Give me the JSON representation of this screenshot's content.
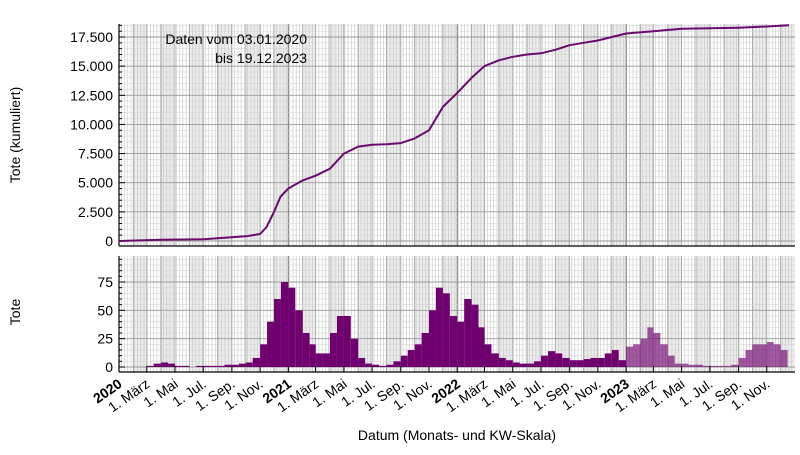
{
  "chart_data": [
    {
      "type": "line",
      "ylabel": "Tote (kumuliert)",
      "annotation": [
        "Daten vom 03.01.2020",
        "bis 19.12.2023"
      ],
      "ylim": [
        0,
        18500
      ],
      "yticks": [
        0,
        2500,
        5000,
        7500,
        10000,
        12500,
        15000,
        17500
      ],
      "ytick_labels": [
        "0",
        "2.500",
        "5.000",
        "7.500",
        "10.000",
        "12.500",
        "15.000",
        "17.500"
      ],
      "color": "#6a0a6e",
      "grid": true,
      "points": [
        [
          "2020-01-03",
          0
        ],
        [
          "2020-04-01",
          100
        ],
        [
          "2020-07-01",
          150
        ],
        [
          "2020-10-01",
          400
        ],
        [
          "2020-11-01",
          600
        ],
        [
          "2020-11-15",
          1200
        ],
        [
          "2020-12-01",
          2500
        ],
        [
          "2020-12-15",
          3800
        ],
        [
          "2021-01-01",
          4500
        ],
        [
          "2021-02-01",
          5200
        ],
        [
          "2021-03-01",
          5600
        ],
        [
          "2021-04-01",
          6200
        ],
        [
          "2021-05-01",
          7500
        ],
        [
          "2021-06-01",
          8100
        ],
        [
          "2021-07-01",
          8250
        ],
        [
          "2021-08-01",
          8300
        ],
        [
          "2021-09-01",
          8400
        ],
        [
          "2021-10-01",
          8800
        ],
        [
          "2021-11-01",
          9500
        ],
        [
          "2021-12-01",
          11500
        ],
        [
          "2022-01-01",
          12700
        ],
        [
          "2022-02-01",
          14000
        ],
        [
          "2022-03-01",
          15000
        ],
        [
          "2022-04-01",
          15500
        ],
        [
          "2022-05-01",
          15800
        ],
        [
          "2022-06-01",
          16000
        ],
        [
          "2022-07-01",
          16100
        ],
        [
          "2022-08-01",
          16400
        ],
        [
          "2022-09-01",
          16800
        ],
        [
          "2022-10-01",
          17000
        ],
        [
          "2022-11-01",
          17200
        ],
        [
          "2022-12-01",
          17500
        ],
        [
          "2023-01-01",
          17800
        ],
        [
          "2023-03-01",
          18000
        ],
        [
          "2023-05-01",
          18200
        ],
        [
          "2023-07-01",
          18250
        ],
        [
          "2023-09-01",
          18300
        ],
        [
          "2023-11-01",
          18400
        ],
        [
          "2023-12-19",
          18500
        ]
      ]
    },
    {
      "type": "bar",
      "ylabel": "Tote",
      "ylim": [
        0,
        95
      ],
      "yticks": [
        0,
        25,
        50,
        75
      ],
      "ytick_labels": [
        "0",
        "25",
        "50",
        "75"
      ],
      "color": "#700070",
      "grid": true,
      "period": "half-month",
      "start": "2020-01",
      "values": [
        0,
        0,
        0,
        0,
        1,
        3,
        4,
        3,
        1,
        1,
        0,
        1,
        1,
        1,
        1,
        2,
        2,
        3,
        4,
        8,
        20,
        40,
        60,
        75,
        70,
        50,
        30,
        20,
        12,
        12,
        30,
        45,
        45,
        25,
        8,
        3,
        2,
        1,
        2,
        5,
        10,
        15,
        20,
        30,
        50,
        70,
        65,
        45,
        40,
        60,
        55,
        35,
        20,
        12,
        8,
        6,
        4,
        3,
        3,
        5,
        10,
        14,
        12,
        8,
        6,
        6,
        7,
        8,
        8,
        12,
        15,
        6,
        18,
        20,
        25,
        35,
        30,
        20,
        10,
        3,
        3,
        2,
        2,
        1,
        1,
        1,
        1,
        2,
        8,
        15,
        20,
        20,
        22,
        20,
        15,
        0
      ]
    }
  ],
  "xaxis": {
    "label": "Datum (Monats- und KW-Skala)",
    "range": [
      "2020-01-01",
      "2024-01-01"
    ],
    "ticks": [
      {
        "date": "2020-01",
        "label": "2020",
        "bold": true
      },
      {
        "date": "2020-03",
        "label": "1. März"
      },
      {
        "date": "2020-05",
        "label": "1. Mai"
      },
      {
        "date": "2020-07",
        "label": "1. Jul."
      },
      {
        "date": "2020-09",
        "label": "1. Sep."
      },
      {
        "date": "2020-11",
        "label": "1. Nov."
      },
      {
        "date": "2021-01",
        "label": "2021",
        "bold": true
      },
      {
        "date": "2021-03",
        "label": "1. März"
      },
      {
        "date": "2021-05",
        "label": "1. Mai"
      },
      {
        "date": "2021-07",
        "label": "1. Jul."
      },
      {
        "date": "2021-09",
        "label": "1. Sep."
      },
      {
        "date": "2021-11",
        "label": "1. Nov."
      },
      {
        "date": "2022-01",
        "label": "2022",
        "bold": true
      },
      {
        "date": "2022-03",
        "label": "1. März"
      },
      {
        "date": "2022-05",
        "label": "1. Mai"
      },
      {
        "date": "2022-07",
        "label": "1. Jul."
      },
      {
        "date": "2022-09",
        "label": "1. Sep."
      },
      {
        "date": "2022-11",
        "label": "1. Nov."
      },
      {
        "date": "2023-01",
        "label": "2023",
        "bold": true
      },
      {
        "date": "2023-03",
        "label": "1. März"
      },
      {
        "date": "2023-05",
        "label": "1. Mai"
      },
      {
        "date": "2023-07",
        "label": "1. Jul."
      },
      {
        "date": "2023-09",
        "label": "1. Sep."
      },
      {
        "date": "2023-11",
        "label": "1. Nov."
      }
    ]
  }
}
